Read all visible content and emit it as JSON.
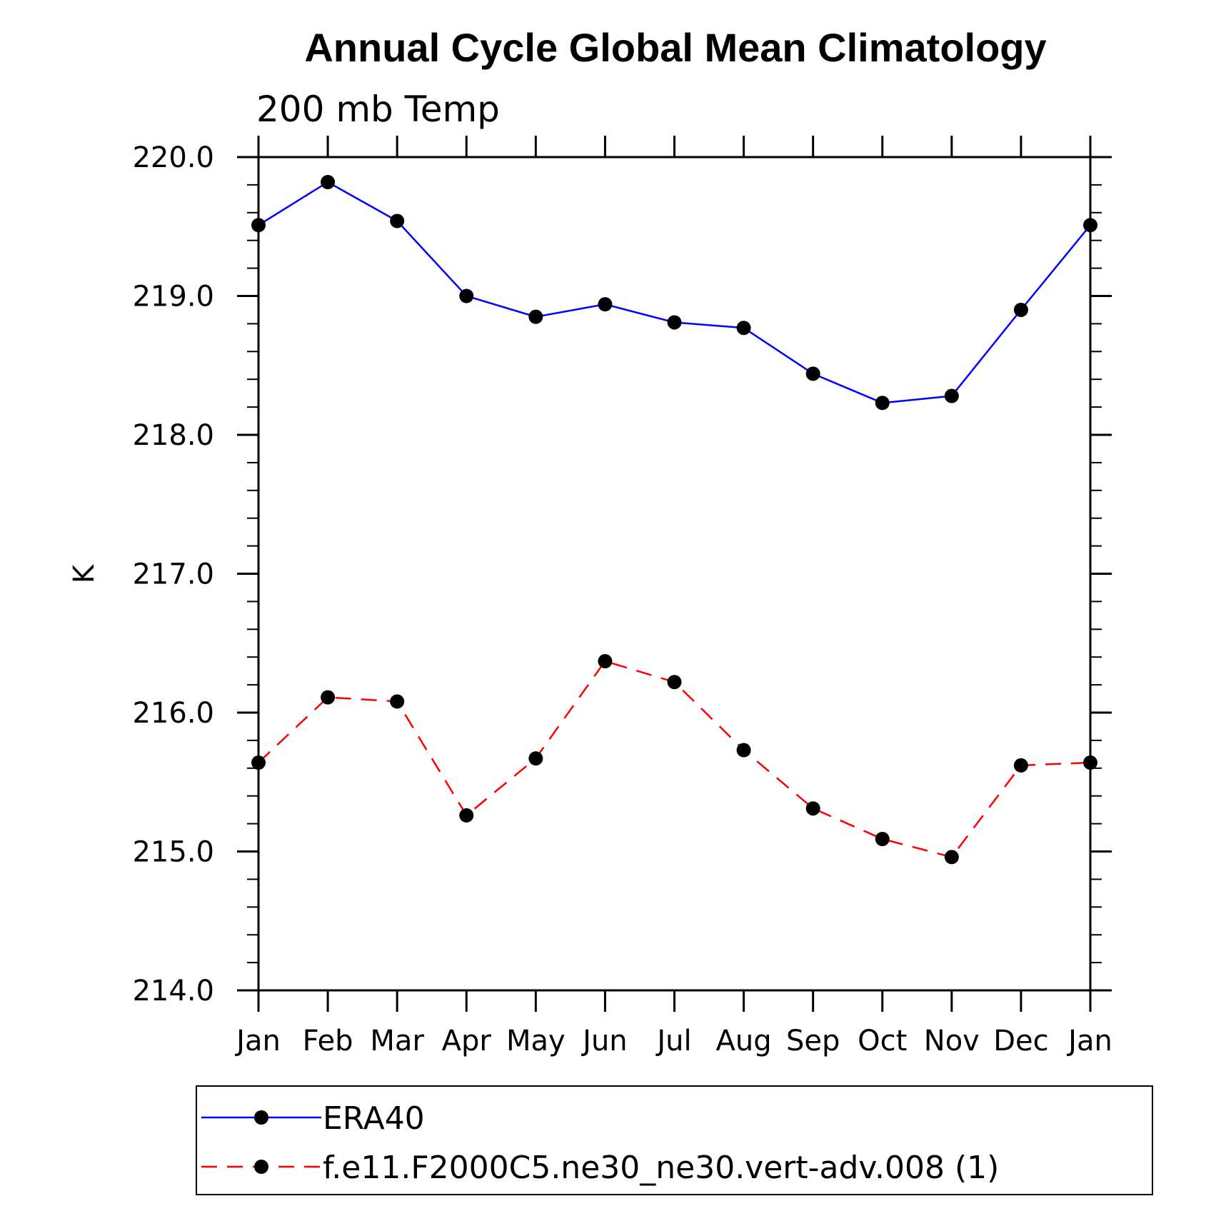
{
  "chart_data": {
    "type": "line",
    "title": "Annual Cycle Global Mean Climatology",
    "subtitle": "200 mb Temp",
    "xlabel": "",
    "ylabel": "K",
    "categories": [
      "Jan",
      "Feb",
      "Mar",
      "Apr",
      "May",
      "Jun",
      "Jul",
      "Aug",
      "Sep",
      "Oct",
      "Nov",
      "Dec",
      "Jan"
    ],
    "ylim": [
      214.0,
      220.0
    ],
    "yticks": [
      "214.0",
      "215.0",
      "216.0",
      "217.0",
      "218.0",
      "219.0",
      "220.0"
    ],
    "grid": false,
    "legend_position": "bottom",
    "series": [
      {
        "name": "ERA40",
        "color": "#0000ff",
        "line_style": "solid",
        "marker": "filled-circle",
        "values": [
          219.51,
          219.82,
          219.54,
          219.0,
          218.85,
          218.94,
          218.81,
          218.77,
          218.44,
          218.23,
          218.28,
          218.9,
          219.51
        ]
      },
      {
        "name": "f.e11.F2000C5.ne30_ne30.vert-adv.008 (1)",
        "color": "#ff0000",
        "line_style": "dashed",
        "marker": "filled-circle",
        "values": [
          215.64,
          216.11,
          216.08,
          215.26,
          215.67,
          216.37,
          216.22,
          215.73,
          215.31,
          215.09,
          214.96,
          215.62,
          215.64
        ]
      }
    ]
  }
}
